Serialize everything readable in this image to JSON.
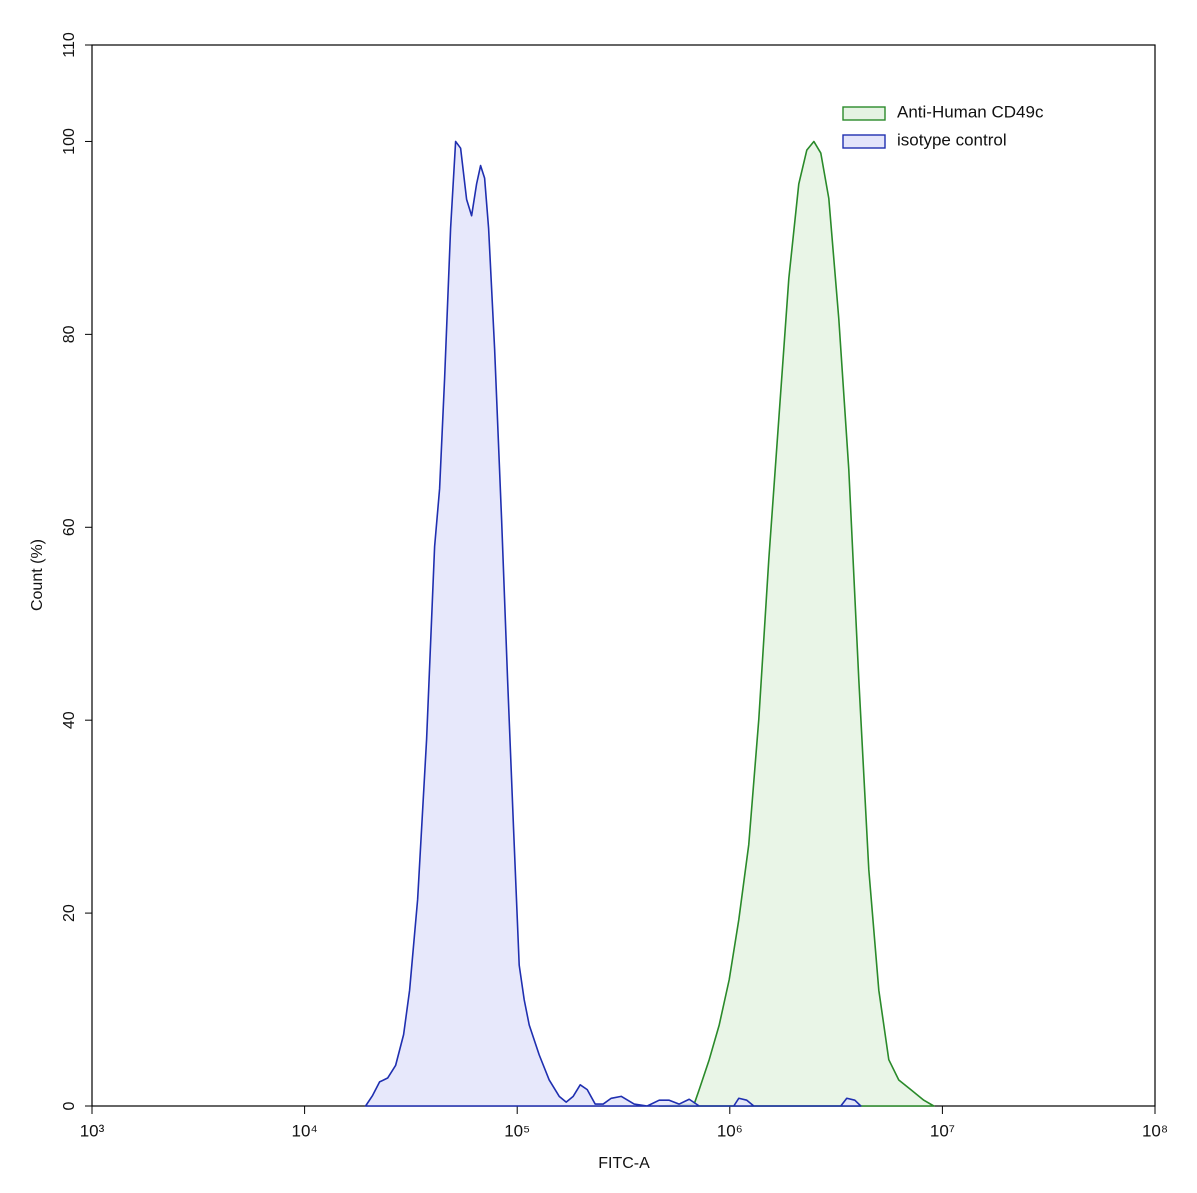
{
  "chart_data": {
    "type": "area",
    "xlabel": "FITC-A",
    "ylabel": "Count  (%)",
    "xscale": "log",
    "xlim": [
      1000,
      100000000
    ],
    "ylim": [
      0,
      110
    ],
    "xticks": [
      {
        "value": 1000,
        "label": "10³"
      },
      {
        "value": 10000,
        "label": "10⁴"
      },
      {
        "value": 100000,
        "label": "10⁵"
      },
      {
        "value": 1000000,
        "label": "10⁶"
      },
      {
        "value": 10000000,
        "label": "10⁷"
      },
      {
        "value": 100000000,
        "label": "10⁸"
      }
    ],
    "yticks": [
      0,
      20,
      40,
      60,
      80,
      100,
      110
    ],
    "legend": "upper-right",
    "series": [
      {
        "name": "Anti-Human CD49c",
        "color": "#2a8a2a",
        "fill": "#e5f3e3",
        "x": [
          465500,
          680000,
          717800,
          800000,
          891600,
          993600,
          1102000,
          1228000,
          1369000,
          1526000,
          1700000,
          1895000,
          2111000,
          2302000,
          2485000,
          2679000,
          2922000,
          3256000,
          3628000,
          4044000,
          4506000,
          5022000,
          5596000,
          6235000,
          7101000,
          8177000,
          9111000
        ],
        "values": [
          0,
          0.2,
          1.7,
          4.8,
          8.4,
          13.1,
          19.3,
          27.1,
          40.1,
          56.7,
          71.2,
          85.8,
          95.6,
          99.1,
          100,
          98.8,
          94.1,
          81.6,
          66,
          44.2,
          24.5,
          12,
          4.8,
          2.7,
          1.7,
          0.6,
          0
        ]
      },
      {
        "name": "isotype control",
        "color": "#1f2fb0",
        "fill": "#e3e4fa",
        "x": [
          19360,
          20890,
          22530,
          24580,
          26790,
          29220,
          31180,
          34010,
          37480,
          40880,
          43150,
          45550,
          48610,
          51330,
          54180,
          57810,
          61030,
          64420,
          67270,
          70250,
          73360,
          78300,
          84450,
          90120,
          96160,
          102190,
          107900,
          113900,
          126900,
          141400,
          157600,
          170000,
          183400,
          197900,
          213500,
          232700,
          253800,
          276800,
          308400,
          355000,
          408800,
          465500,
          518800,
          578100,
          644200,
          717800,
          1044000,
          1102000,
          1202000,
          1297000,
          3327000,
          3550000,
          3873000,
          4133000
        ],
        "values": [
          0,
          1.1,
          2.5,
          2.9,
          4.2,
          7.4,
          12,
          21.4,
          38,
          58,
          64,
          75.4,
          91,
          100,
          99.3,
          94,
          92.3,
          95.6,
          97.5,
          96.2,
          91,
          78.5,
          60.8,
          44.2,
          28.7,
          14.6,
          11,
          8.4,
          5.3,
          2.7,
          1,
          0.4,
          1,
          2.2,
          1.7,
          0.2,
          0.2,
          0.8,
          1,
          0.2,
          0,
          0.6,
          0.6,
          0.2,
          0.7,
          0,
          0,
          0.8,
          0.6,
          0,
          0,
          0.8,
          0.6,
          0
        ]
      }
    ]
  }
}
